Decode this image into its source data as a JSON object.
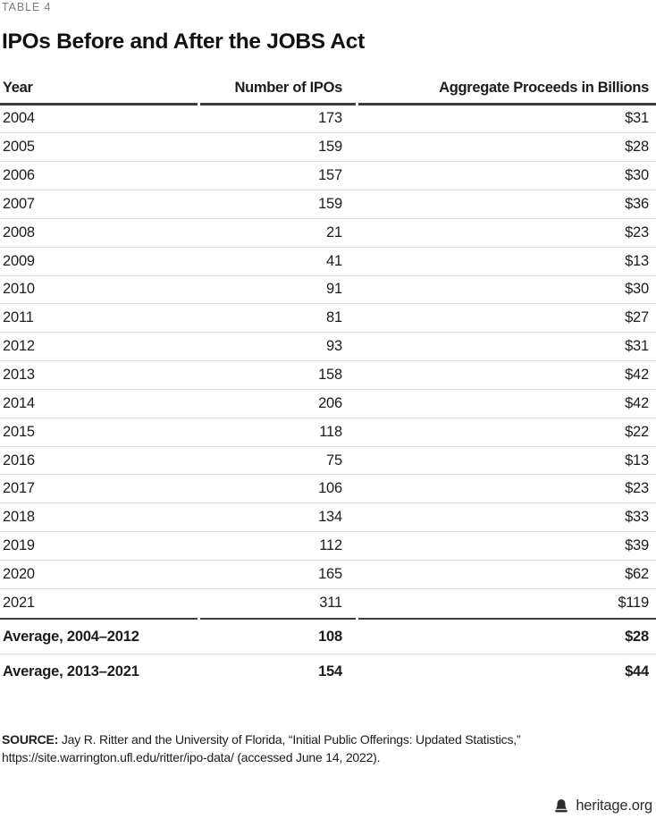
{
  "table_label": "TABLE 4",
  "chart_data": {
    "type": "table",
    "title": "IPOs Before and After the JOBS Act",
    "columns": [
      "Year",
      "Number of IPOs",
      "Aggregate Proceeds in Billions"
    ],
    "rows": [
      [
        "2004",
        "173",
        "$31"
      ],
      [
        "2005",
        "159",
        "$28"
      ],
      [
        "2006",
        "157",
        "$30"
      ],
      [
        "2007",
        "159",
        "$36"
      ],
      [
        "2008",
        "21",
        "$23"
      ],
      [
        "2009",
        "41",
        "$13"
      ],
      [
        "2010",
        "91",
        "$30"
      ],
      [
        "2011",
        "81",
        "$27"
      ],
      [
        "2012",
        "93",
        "$31"
      ],
      [
        "2013",
        "158",
        "$42"
      ],
      [
        "2014",
        "206",
        "$42"
      ],
      [
        "2015",
        "118",
        "$22"
      ],
      [
        "2016",
        "75",
        "$13"
      ],
      [
        "2017",
        "106",
        "$23"
      ],
      [
        "2018",
        "134",
        "$33"
      ],
      [
        "2019",
        "112",
        "$39"
      ],
      [
        "2020",
        "165",
        "$62"
      ],
      [
        "2021",
        "311",
        "$119"
      ]
    ],
    "summary_rows": [
      [
        "Average, 2004–2012",
        "108",
        "$28"
      ],
      [
        "Average, 2013–2021",
        "154",
        "$44"
      ]
    ]
  },
  "source": {
    "label": "SOURCE:",
    "line1": "Jay R. Ritter and the University of Florida, “Initial Public Offerings: Updated Statistics,”",
    "line2": "https://site.warrington.ufl.edu/ritter/ipo-data/ (accessed June 14, 2022)."
  },
  "footer": {
    "brand": "heritage.org",
    "icon": "liberty-bell-icon"
  },
  "colors": {
    "text": "#1c1c1c",
    "label_gray": "#7e7e7e",
    "rule_dark": "#3c3c3c",
    "rule_light": "#dfdfdf"
  }
}
